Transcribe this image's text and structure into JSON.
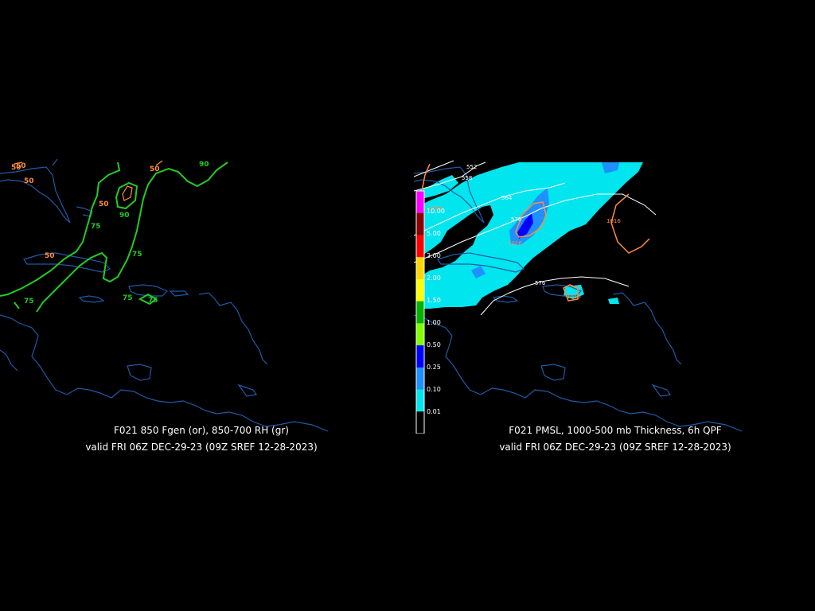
{
  "left_panel": {
    "title": "F021 850 Fgen (or), 850-700 RH (gr)",
    "valid": "valid FRI 06Z DEC-29-23 (09Z SREF 12-28-2023)",
    "fgen_labels": [
      "50",
      "50",
      "50",
      "50",
      "50",
      "50"
    ],
    "rh_labels": [
      "90",
      "90",
      "75",
      "75",
      "75",
      "75",
      "75"
    ],
    "colors": {
      "fgen": "#ff8c3c",
      "rh": "#22cc22",
      "coast": "#1f5aa8"
    }
  },
  "right_panel": {
    "title": "F021 PMSL, 1000-500 mb Thickness, 6h QPF",
    "valid": "valid FRI 06Z DEC-29-23 (09Z SREF 12-28-2023)",
    "thickness_labels": [
      "552",
      "558",
      "564",
      "570",
      "576"
    ],
    "pmsl_labels": [
      "1016",
      "1016",
      "1016",
      "1016"
    ],
    "colorbar": {
      "labels": [
        "10.00",
        "5.00",
        "3.00",
        "2.00",
        "1.50",
        "1.00",
        "0.50",
        "0.25",
        "0.10",
        "0.01"
      ],
      "colors": [
        "#ff00ff",
        "#8b0000",
        "#ff0000",
        "#ffd700",
        "#ffff00",
        "#00b400",
        "#7fff00",
        "#0000ff",
        "#1e90ff",
        "#00e5ee",
        "#000000"
      ]
    },
    "colors": {
      "qpf_light": "#00e5ee",
      "qpf_mid": "#1e90ff",
      "qpf_heavy": "#0000ff",
      "pmsl": "#ff8c3c",
      "thickness": "#ffffff",
      "coast": "#1f5aa8"
    }
  }
}
